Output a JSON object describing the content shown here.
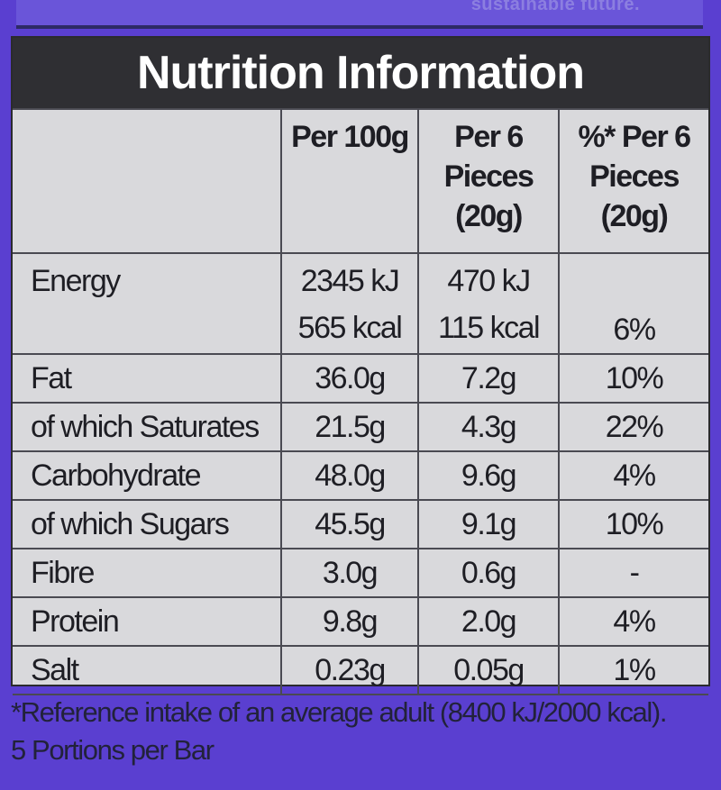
{
  "header": {
    "faint_text": "sustainable future.",
    "title": "Nutrition Information"
  },
  "table": {
    "columns": [
      "",
      "Per 100g",
      "Per 6 Pieces (20g)",
      "%* Per 6 Pieces (20g)"
    ],
    "energy": {
      "label": "Energy",
      "per100_kj": "2345 kJ",
      "per100_kcal": "565 kcal",
      "per6_kj": "470 kJ",
      "per6_kcal": "115 kcal",
      "ri": "6%"
    },
    "rows": [
      {
        "nutrient": "Fat",
        "per100": "36.0g",
        "per6": "7.2g",
        "ri": "10%"
      },
      {
        "nutrient": "of which Saturates",
        "per100": "21.5g",
        "per6": "4.3g",
        "ri": "22%"
      },
      {
        "nutrient": "Carbohydrate",
        "per100": "48.0g",
        "per6": "9.6g",
        "ri": "4%"
      },
      {
        "nutrient": "of which Sugars",
        "per100": "45.5g",
        "per6": "9.1g",
        "ri": "10%"
      },
      {
        "nutrient": "Fibre",
        "per100": "3.0g",
        "per6": "0.6g",
        "ri": "-"
      },
      {
        "nutrient": "Protein",
        "per100": "9.8g",
        "per6": "2.0g",
        "ri": "4%"
      },
      {
        "nutrient": "Salt",
        "per100": "0.23g",
        "per6": "0.05g",
        "ri": "1%"
      }
    ]
  },
  "footer": {
    "reference_note": "*Reference intake of an average adult (8400 kJ/2000 kcal).",
    "portions": "5 Portions per Bar"
  },
  "colors": {
    "packaging_purple": "#5a3fd0",
    "panel_grey": "#d9d9dc",
    "title_bar": "#2f2f33",
    "text_dark": "#1e1e24"
  }
}
